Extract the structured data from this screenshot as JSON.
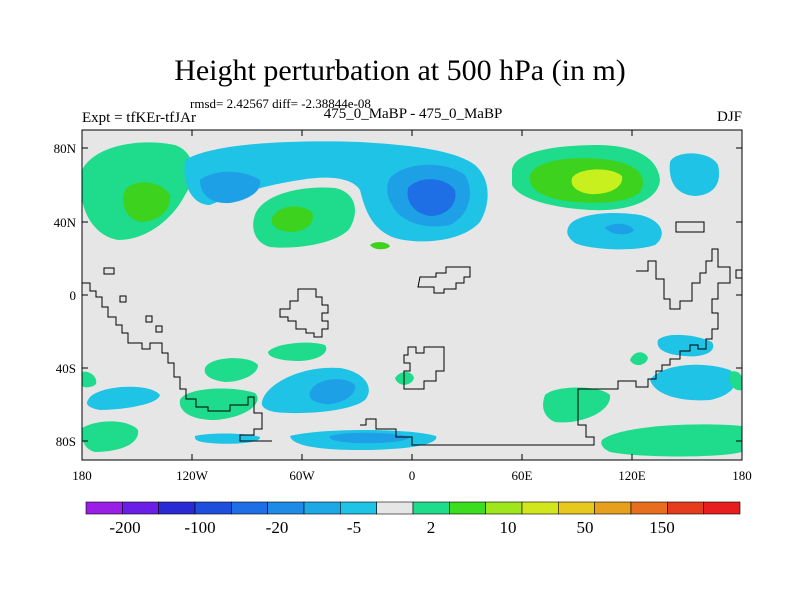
{
  "title": "Height perturbation at 500 hPa (in m)",
  "stats": "rmsd= 2.42567 diff= -2.38844e-08",
  "left_label": "Expt = tfKEr-tfJAr",
  "center_label": "475_0_MaBP - 475_0_MaBP",
  "right_label": "DJF",
  "lat_labels": [
    "80N",
    "40N",
    "0",
    "40S",
    "80S"
  ],
  "lon_labels": [
    "180",
    "120W",
    "60W",
    "0",
    "60E",
    "120E",
    "180"
  ],
  "colorbar": {
    "labels": [
      "-200",
      "-100",
      "-20",
      "-5",
      "2",
      "10",
      "50",
      "150"
    ],
    "colors": [
      "#9b1ee6",
      "#6a1ee6",
      "#2a2ad4",
      "#1e4fdc",
      "#1e6ee6",
      "#1e8ce6",
      "#1ea8e6",
      "#1ec3e6",
      "#e6e6e6",
      "#1edc8c",
      "#3cdc1e",
      "#a0e61e",
      "#d2e61e",
      "#e6c81e",
      "#e6a01e",
      "#e66e1e",
      "#e63c1e",
      "#e61e1e"
    ]
  },
  "colors": {
    "background": "#e6e6e6",
    "weak_pos": "#1edc8c",
    "mod_pos": "#3cd21e",
    "strong_pos": "#c8f01e",
    "weak_neg": "#1ec3e6",
    "mod_neg": "#1ea0e6",
    "strong_neg": "#1e6ee6"
  }
}
